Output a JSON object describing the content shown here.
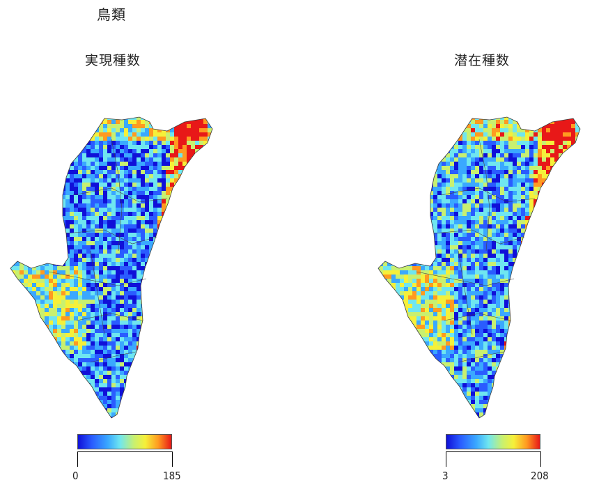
{
  "title": "鳥類",
  "panels": [
    {
      "title": "実現種数",
      "legend_min": "0",
      "legend_max": "185"
    },
    {
      "title": "潜在種数",
      "legend_min": "3",
      "legend_max": "208"
    }
  ],
  "colorscale": [
    "#1010d8",
    "#2a5cff",
    "#3aa8ff",
    "#6fe6f0",
    "#c8f070",
    "#f5f03a",
    "#ff9a20",
    "#e81818"
  ]
}
